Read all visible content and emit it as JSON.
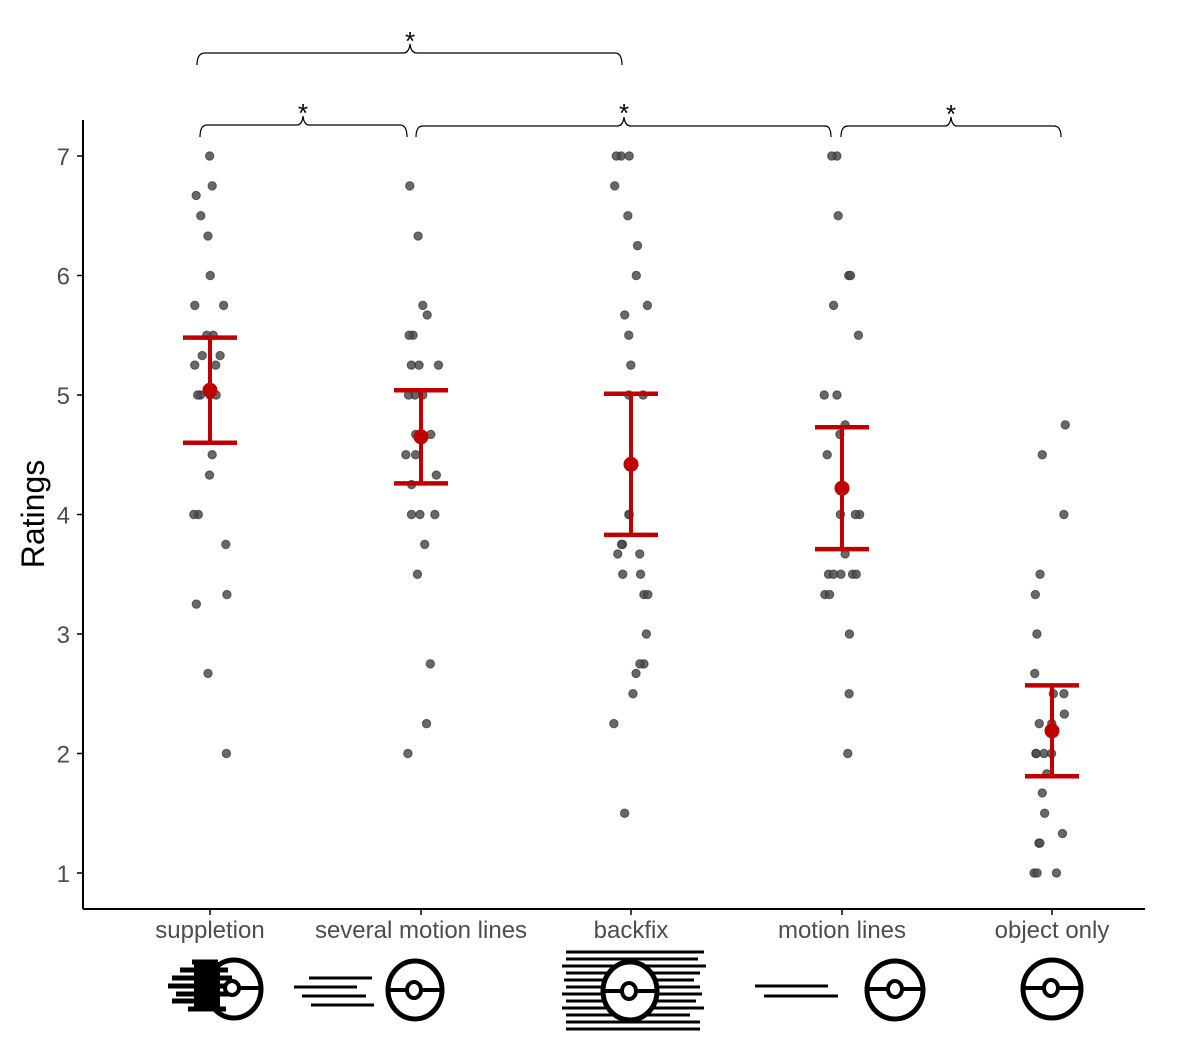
{
  "chart_data": {
    "type": "scatter",
    "title": "",
    "xlabel": "",
    "ylabel": "Ratings",
    "ylim": [
      0.7,
      7.3
    ],
    "yticks": [
      1,
      2,
      3,
      4,
      5,
      6,
      7
    ],
    "grid": false,
    "legend": null,
    "categories": [
      "suppletion",
      "several motion lines",
      "backfix",
      "motion lines",
      "object only"
    ],
    "summary": [
      {
        "category": "suppletion",
        "mean": 5.04,
        "ci_low": 4.6,
        "ci_high": 5.48
      },
      {
        "category": "several motion lines",
        "mean": 4.65,
        "ci_low": 4.26,
        "ci_high": 5.04
      },
      {
        "category": "backfix",
        "mean": 4.42,
        "ci_low": 3.83,
        "ci_high": 5.01
      },
      {
        "category": "motion lines",
        "mean": 4.22,
        "ci_low": 3.71,
        "ci_high": 4.73
      },
      {
        "category": "object only",
        "mean": 2.19,
        "ci_low": 1.81,
        "ci_high": 2.57
      }
    ],
    "points": {
      "suppletion": [
        7,
        6.75,
        6.67,
        6.5,
        6.33,
        6,
        5.75,
        5.75,
        5.5,
        5.5,
        5.33,
        5.33,
        5.25,
        5.25,
        5,
        5,
        5,
        5,
        4.5,
        4.33,
        4,
        4,
        3.75,
        3.33,
        3.25,
        2.67,
        2
      ],
      "several motion lines": [
        6.75,
        6.33,
        5.75,
        5.67,
        5.5,
        5.5,
        5.25,
        5.25,
        5.25,
        5,
        5,
        5,
        4.67,
        4.67,
        4.5,
        4.5,
        4.33,
        4.25,
        4,
        4,
        4,
        3.75,
        3.5,
        2.75,
        2.25,
        2
      ],
      "backfix": [
        7,
        7,
        7,
        6.75,
        6.5,
        6.25,
        6,
        5.75,
        5.67,
        5.5,
        5.25,
        5,
        5,
        4,
        4,
        3.75,
        3.75,
        3.67,
        3.67,
        3.5,
        3.5,
        3.33,
        3.33,
        3,
        2.75,
        2.75,
        2.67,
        2.5,
        2.25,
        1.5
      ],
      "motion lines": [
        7,
        7,
        6.5,
        6,
        6,
        5.75,
        5.5,
        5,
        5,
        4.75,
        4.67,
        4.5,
        4,
        4,
        4,
        3.67,
        3.5,
        3.5,
        3.5,
        3.5,
        3.5,
        3.33,
        3.33,
        3,
        2.5,
        2
      ],
      "object only": [
        4.75,
        4.5,
        4,
        3.5,
        3.33,
        3,
        2.67,
        2.5,
        2.5,
        2.33,
        2.25,
        2.25,
        2,
        2,
        2,
        2,
        1.83,
        1.67,
        1.5,
        1.33,
        1.25,
        1.25,
        1,
        1,
        1
      ]
    },
    "significance_brackets": [
      {
        "from": "suppletion",
        "to": "backfix",
        "label": "*"
      },
      {
        "from": "suppletion",
        "to": "several motion lines",
        "label": "*"
      },
      {
        "from": "several motion lines",
        "to": "motion lines",
        "label": "*"
      },
      {
        "from": "motion lines",
        "to": "object only",
        "label": "*"
      }
    ],
    "colors": {
      "points": "#4d4d4d",
      "summary": "#c00000",
      "axis": "#000000"
    }
  },
  "axis": {
    "ylabel": "Ratings",
    "yticks": [
      "1",
      "2",
      "3",
      "4",
      "5",
      "6",
      "7"
    ]
  },
  "categories": [
    {
      "label": "suppletion",
      "icon": "suppletion-glyph-icon"
    },
    {
      "label": "several motion lines",
      "icon": "several-motion-lines-glyph-icon"
    },
    {
      "label": "backfix",
      "icon": "backfix-glyph-icon"
    },
    {
      "label": "motion lines",
      "icon": "motion-lines-glyph-icon"
    },
    {
      "label": "object only",
      "icon": "object-only-glyph-icon"
    }
  ],
  "brackets": [
    "*",
    "*",
    "*",
    "*"
  ]
}
